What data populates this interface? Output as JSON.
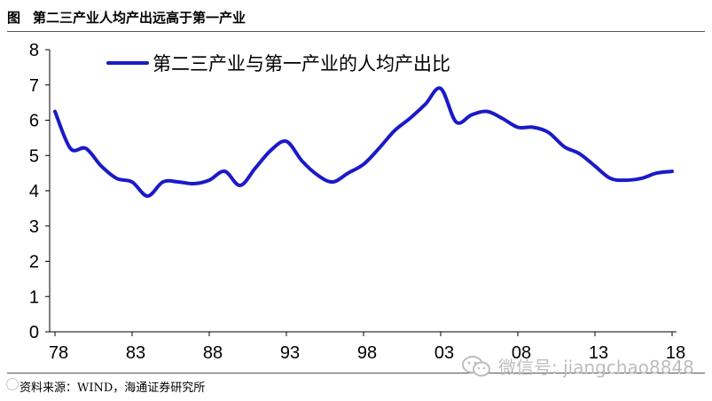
{
  "figure": {
    "prefix": "图",
    "title": "第二三产业人均产出远高于第一产业",
    "source": "资料来源：WIND，海通证券研究所",
    "watermark_text": "微信号: jiangchao8848",
    "watermark_icon": "wechat-icon"
  },
  "chart_data": {
    "type": "line",
    "title": "",
    "xlabel": "",
    "ylabel": "",
    "ylim": [
      0,
      8
    ],
    "yticks": [
      "0",
      "1",
      "2",
      "3",
      "4",
      "5",
      "6",
      "7",
      "8"
    ],
    "xlim": [
      1978,
      2018
    ],
    "xticks": [
      {
        "year": 1978,
        "label": "78"
      },
      {
        "year": 1983,
        "label": "83"
      },
      {
        "year": 1988,
        "label": "88"
      },
      {
        "year": 1993,
        "label": "93"
      },
      {
        "year": 1998,
        "label": "98"
      },
      {
        "year": 2003,
        "label": "03"
      },
      {
        "year": 2008,
        "label": "08"
      },
      {
        "year": 2013,
        "label": "13"
      },
      {
        "year": 2018,
        "label": "18"
      }
    ],
    "grid": false,
    "legend_position": "top-left",
    "series": [
      {
        "name": "第二三产业与第一产业的人均产出比",
        "color": "#1a1ac8",
        "x": [
          1978,
          1979,
          1980,
          1981,
          1982,
          1983,
          1984,
          1985,
          1986,
          1987,
          1988,
          1989,
          1990,
          1991,
          1992,
          1993,
          1994,
          1995,
          1996,
          1997,
          1998,
          1999,
          2000,
          2001,
          2002,
          2003,
          2004,
          2005,
          2006,
          2007,
          2008,
          2009,
          2010,
          2011,
          2012,
          2013,
          2014,
          2015,
          2016,
          2017,
          2018
        ],
        "values": [
          6.25,
          5.2,
          5.2,
          4.7,
          4.35,
          4.25,
          3.85,
          4.25,
          4.25,
          4.2,
          4.3,
          4.55,
          4.15,
          4.65,
          5.15,
          5.4,
          4.85,
          4.45,
          4.25,
          4.5,
          4.75,
          5.2,
          5.7,
          6.05,
          6.45,
          6.9,
          5.95,
          6.15,
          6.25,
          6.05,
          5.8,
          5.8,
          5.65,
          5.25,
          5.05,
          4.7,
          4.35,
          4.3,
          4.35,
          4.5,
          4.55
        ]
      }
    ]
  }
}
